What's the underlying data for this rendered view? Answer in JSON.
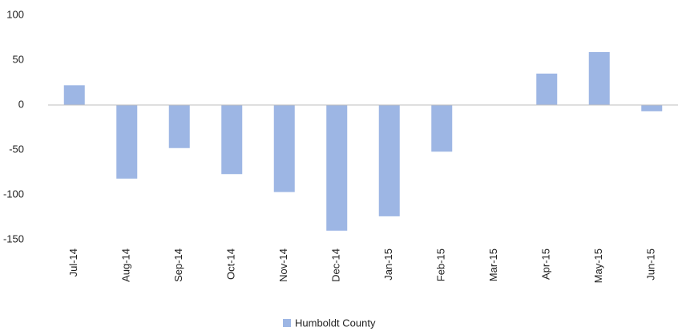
{
  "chart_data": {
    "type": "bar",
    "categories": [
      "Jul-14",
      "Aug-14",
      "Sep-14",
      "Oct-14",
      "Nov-14",
      "Dec-14",
      "Jan-15",
      "Feb-15",
      "Mar-15",
      "Apr-15",
      "May-15",
      "Jun-15"
    ],
    "series": [
      {
        "name": "Humboldt County",
        "color": "#9db6e4",
        "values": [
          22,
          -82,
          -48,
          -77,
          -97,
          -140,
          -124,
          -52,
          0,
          35,
          59,
          -7
        ]
      }
    ],
    "ylim": [
      -150,
      100
    ],
    "yticks": [
      -150,
      -100,
      -50,
      0,
      50,
      100
    ],
    "grid": false,
    "legend": "bottom"
  }
}
